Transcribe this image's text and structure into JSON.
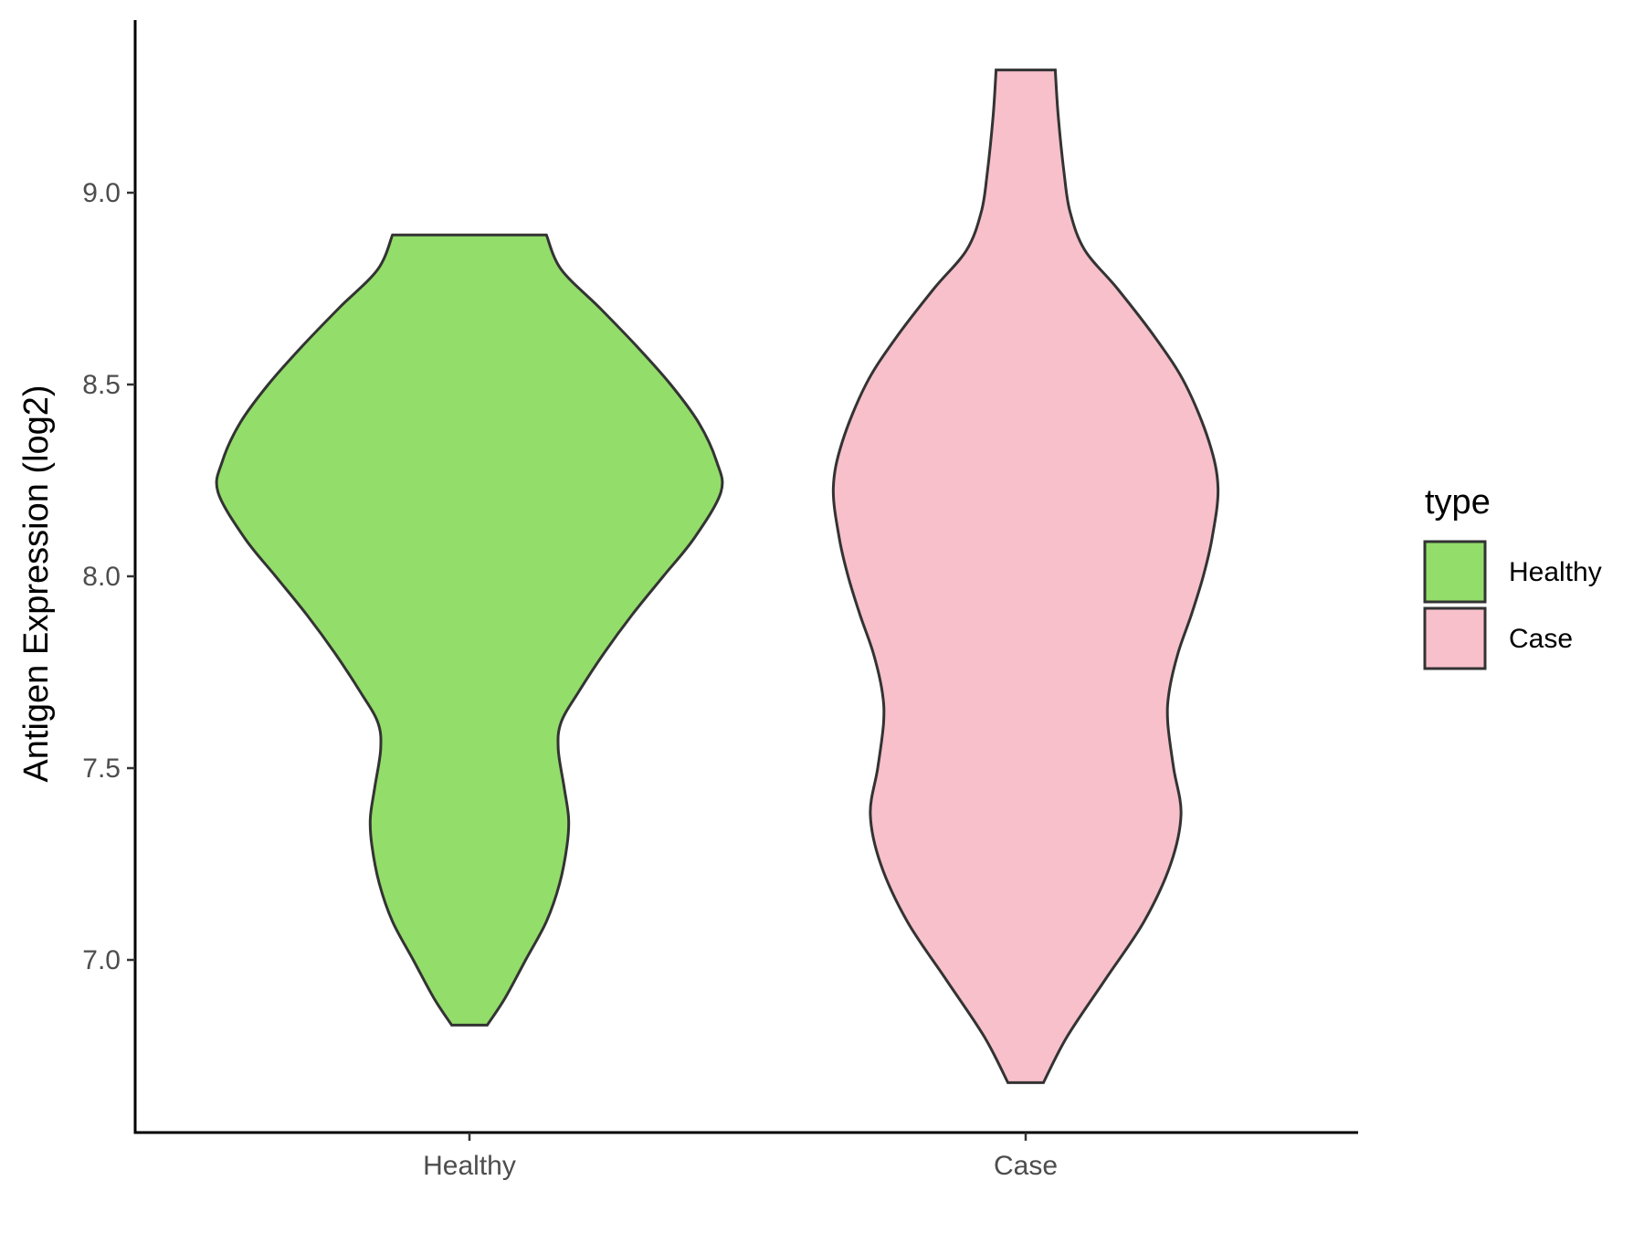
{
  "chart_data": {
    "type": "violin",
    "title": "",
    "xlabel": "",
    "ylabel": "Antigen Expression (log2)",
    "ylim": [
      6.55,
      9.45
    ],
    "yticks": [
      7.0,
      7.5,
      8.0,
      8.5,
      9.0
    ],
    "ytick_labels": [
      "7.0",
      "7.5",
      "8.0",
      "8.5",
      "9.0"
    ],
    "categories": [
      "Healthy",
      "Case"
    ],
    "legend": {
      "title": "type",
      "position": "right",
      "entries": [
        {
          "label": "Healthy",
          "color": "#93dd6a"
        },
        {
          "label": "Case",
          "color": "#f7c0cb"
        }
      ]
    },
    "series": [
      {
        "name": "Healthy",
        "color": "#93dd6a",
        "min": 6.83,
        "max": 8.89,
        "density": [
          [
            6.83,
            0.12
          ],
          [
            6.9,
            0.24
          ],
          [
            7.0,
            0.38
          ],
          [
            7.1,
            0.52
          ],
          [
            7.2,
            0.61
          ],
          [
            7.3,
            0.66
          ],
          [
            7.37,
            0.67
          ],
          [
            7.45,
            0.64
          ],
          [
            7.55,
            0.6
          ],
          [
            7.62,
            0.62
          ],
          [
            7.7,
            0.74
          ],
          [
            7.8,
            0.91
          ],
          [
            7.9,
            1.1
          ],
          [
            8.0,
            1.31
          ],
          [
            8.1,
            1.52
          ],
          [
            8.22,
            1.7
          ],
          [
            8.3,
            1.67
          ],
          [
            8.4,
            1.55
          ],
          [
            8.5,
            1.36
          ],
          [
            8.6,
            1.13
          ],
          [
            8.7,
            0.88
          ],
          [
            8.8,
            0.62
          ],
          [
            8.89,
            0.52
          ]
        ]
      },
      {
        "name": "Case",
        "color": "#f7c0cb",
        "min": 6.68,
        "max": 9.32,
        "density": [
          [
            6.68,
            0.12
          ],
          [
            6.8,
            0.28
          ],
          [
            6.95,
            0.54
          ],
          [
            7.1,
            0.8
          ],
          [
            7.25,
            0.98
          ],
          [
            7.38,
            1.05
          ],
          [
            7.5,
            1.0
          ],
          [
            7.62,
            0.96
          ],
          [
            7.7,
            0.97
          ],
          [
            7.8,
            1.03
          ],
          [
            7.9,
            1.12
          ],
          [
            8.0,
            1.2
          ],
          [
            8.1,
            1.26
          ],
          [
            8.23,
            1.3
          ],
          [
            8.35,
            1.24
          ],
          [
            8.5,
            1.08
          ],
          [
            8.62,
            0.88
          ],
          [
            8.75,
            0.62
          ],
          [
            8.85,
            0.4
          ],
          [
            8.95,
            0.3
          ],
          [
            9.05,
            0.26
          ],
          [
            9.2,
            0.22
          ],
          [
            9.32,
            0.2
          ]
        ]
      }
    ]
  }
}
